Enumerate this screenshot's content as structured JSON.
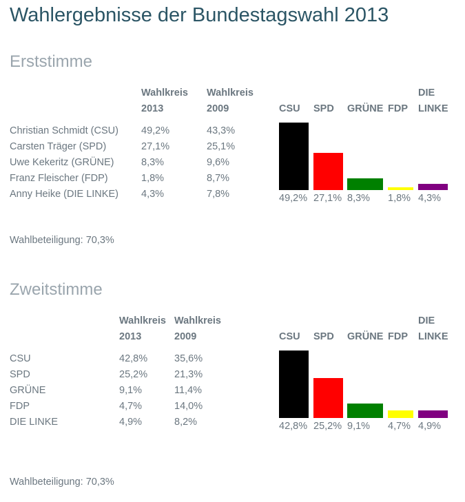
{
  "page": {
    "title": "Wahlergebnisse der Bundestagswahl 2013"
  },
  "sections": [
    {
      "heading": "Erststimme",
      "columns": [
        {
          "line1": "Wahlkreis",
          "line2": "2013"
        },
        {
          "line1": "Wahlkreis",
          "line2": "2009"
        }
      ],
      "rows": [
        {
          "name": "Christian Schmidt (CSU)",
          "v2013": "49,2%",
          "v2009": "43,3%"
        },
        {
          "name": "Carsten Träger (SPD)",
          "v2013": "27,1%",
          "v2009": "25,1%"
        },
        {
          "name": "Uwe Kekeritz (GRÜNE)",
          "v2013": "8,3%",
          "v2009": "9,6%"
        },
        {
          "name": "Franz Fleischer (FDP)",
          "v2013": "1,8%",
          "v2009": "8,7%"
        },
        {
          "name": "Anny Heike (DIE LINKE)",
          "v2013": "4,3%",
          "v2009": "7,8%"
        }
      ],
      "turnout": "Wahlbeteiligung: 70,3%"
    },
    {
      "heading": "Zweitstimme",
      "columns": [
        {
          "line1": "Wahlkreis",
          "line2": "2013"
        },
        {
          "line1": "Wahlkreis",
          "line2": "2009"
        }
      ],
      "rows": [
        {
          "name": "CSU",
          "v2013": "42,8%",
          "v2009": "35,6%"
        },
        {
          "name": "SPD",
          "v2013": "25,2%",
          "v2009": "21,3%"
        },
        {
          "name": "GRÜNE",
          "v2013": "9,1%",
          "v2009": "11,4%"
        },
        {
          "name": "FDP",
          "v2013": "4,7%",
          "v2009": "14,0%"
        },
        {
          "name": "DIE LINKE",
          "v2013": "4,9%",
          "v2009": "8,2%"
        }
      ],
      "turnout": "Wahlbeteiligung: 70,3%"
    }
  ],
  "colors": {
    "CSU": "#000000",
    "SPD": "#ff0000",
    "GRÜNE": "#008000",
    "FDP": "#ffff00",
    "DIE LINKE": "#800080"
  },
  "chart_data": [
    {
      "type": "bar",
      "categories": [
        {
          "line1": "",
          "line2": "CSU"
        },
        {
          "line1": "",
          "line2": "SPD"
        },
        {
          "line1": "",
          "line2": "GRÜNE"
        },
        {
          "line1": "",
          "line2": "FDP"
        },
        {
          "line1": "DIE",
          "line2": "LINKE"
        }
      ],
      "values": [
        49.2,
        27.1,
        8.3,
        1.8,
        4.3
      ],
      "value_labels": [
        "49,2%",
        "27,1%",
        "8,3%",
        "1,8%",
        "4,3%"
      ],
      "ylim": [
        0,
        49.2
      ],
      "grid": false
    },
    {
      "type": "bar",
      "categories": [
        {
          "line1": "",
          "line2": "CSU"
        },
        {
          "line1": "",
          "line2": "SPD"
        },
        {
          "line1": "",
          "line2": "GRÜNE"
        },
        {
          "line1": "",
          "line2": "FDP"
        },
        {
          "line1": "DIE",
          "line2": "LINKE"
        }
      ],
      "values": [
        42.8,
        25.2,
        9.1,
        4.7,
        4.9
      ],
      "value_labels": [
        "42,8%",
        "25,2%",
        "9,1%",
        "4,7%",
        "4,9%"
      ],
      "ylim": [
        0,
        42.8
      ],
      "grid": false
    }
  ]
}
